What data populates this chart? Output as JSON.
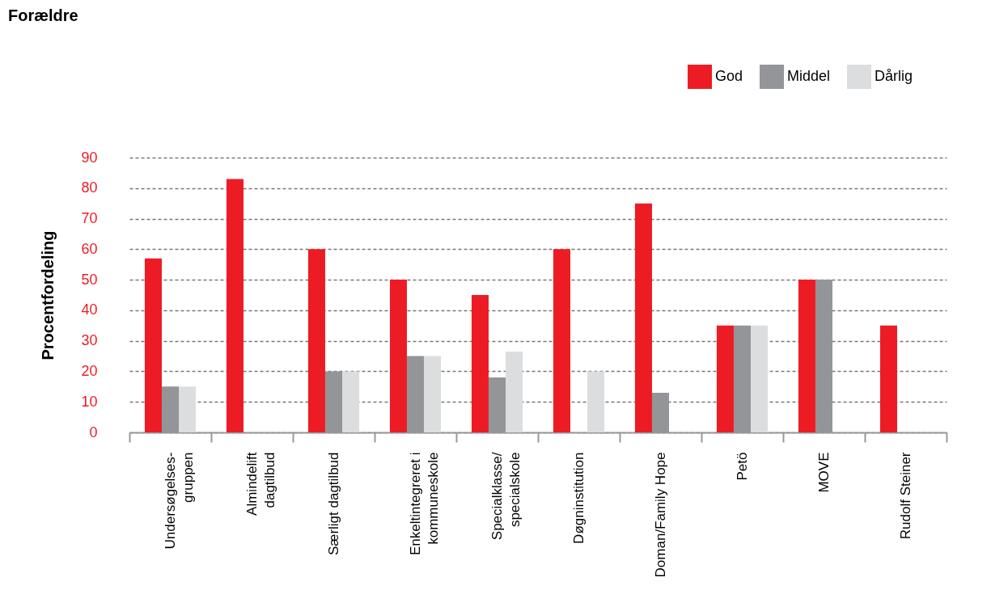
{
  "chart_data": {
    "type": "bar",
    "title": "Forældre",
    "ylabel": "Procentfordeling",
    "categories": [
      "Undersøgelses-\ngruppen",
      "Almindelift\ndagtilbud",
      "Særligt dagtilbud",
      "Enkeltintegreret i\nkommuneskole",
      "Specialklasse/\nspecialskole",
      "Døgninstitution",
      "Doman/Family Hope",
      "Petö",
      "MOVE",
      "Rudolf Steiner"
    ],
    "series": [
      {
        "name": "God",
        "color": "#ed1c24",
        "values": [
          57,
          83,
          60,
          50,
          45,
          60,
          75,
          35,
          50,
          35
        ]
      },
      {
        "name": "Middel",
        "color": "#939598",
        "values": [
          15,
          null,
          20,
          25,
          18,
          null,
          13,
          35,
          50,
          null
        ]
      },
      {
        "name": "Dårlig",
        "color": "#dcdddf",
        "values": [
          15,
          null,
          20,
          25,
          26.5,
          20,
          null,
          35,
          null,
          null
        ]
      }
    ],
    "ylim": [
      0,
      90
    ],
    "yticks": [
      0,
      10,
      20,
      30,
      40,
      50,
      60,
      70,
      80,
      90
    ],
    "grid": "y",
    "legend": "top right"
  }
}
